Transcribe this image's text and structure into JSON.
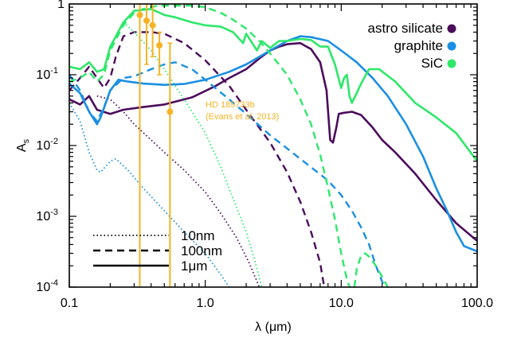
{
  "chart_data": {
    "type": "line",
    "xscale": "log",
    "yscale": "log",
    "xlim": [
      0.1,
      100.0
    ],
    "ylim": [
      0.0001,
      1
    ],
    "xlabel": "λ (μm)",
    "ylabel": "A_s",
    "x_ticks": [
      {
        "value": 0.1,
        "label": "0.1"
      },
      {
        "value": 1.0,
        "label": "1.0"
      },
      {
        "value": 10.0,
        "label": "10.0"
      },
      {
        "value": 100.0,
        "label": "100.0"
      }
    ],
    "y_ticks": [
      {
        "value": 1,
        "base": "1",
        "exp": ""
      },
      {
        "value": 0.1,
        "base": "10",
        "exp": "-1"
      },
      {
        "value": 0.01,
        "base": "10",
        "exp": "-2"
      },
      {
        "value": 0.001,
        "base": "10",
        "exp": "-3"
      },
      {
        "value": 0.0001,
        "base": "10",
        "exp": "-4"
      }
    ],
    "colors": {
      "astro_silicate": "#4b0c5c",
      "graphite": "#1a8fe3",
      "SiC": "#2ee86a",
      "observations": "#f5b324",
      "axes": "#000000"
    },
    "materials": [
      {
        "key": "astro_silicate",
        "name": "astro silicate"
      },
      {
        "key": "graphite",
        "name": "graphite"
      },
      {
        "key": "SiC",
        "name": "SiC"
      }
    ],
    "sizes": [
      {
        "label": "10nm",
        "dash": "dotted"
      },
      {
        "label": "100nm",
        "dash": "dashed"
      },
      {
        "label": "1μm",
        "dash": "solid"
      }
    ],
    "annotation": {
      "line1": "HD 189733b",
      "line2": "(Evans et al. 2013)"
    },
    "observations": [
      {
        "x": 0.33,
        "y": 0.7,
        "ylo": 0.0001,
        "yhi": 1.0
      },
      {
        "x": 0.37,
        "y": 0.58,
        "ylo": 0.14,
        "yhi": 1.0
      },
      {
        "x": 0.41,
        "y": 0.5,
        "ylo": 0.18,
        "yhi": 1.0
      },
      {
        "x": 0.46,
        "y": 0.26,
        "ylo": 0.1,
        "yhi": 0.4
      },
      {
        "x": 0.55,
        "y": 0.03,
        "ylo": 0.0001,
        "yhi": 0.28
      }
    ],
    "series": [
      {
        "material": "astro_silicate",
        "size": "1μm",
        "points": [
          [
            0.1,
            0.045
          ],
          [
            0.12,
            0.038
          ],
          [
            0.14,
            0.05
          ],
          [
            0.16,
            0.032
          ],
          [
            0.2,
            0.028
          ],
          [
            0.25,
            0.032
          ],
          [
            0.35,
            0.035
          ],
          [
            0.5,
            0.038
          ],
          [
            0.8,
            0.048
          ],
          [
            1.2,
            0.07
          ],
          [
            1.5,
            0.09
          ],
          [
            2,
            0.12
          ],
          [
            2.5,
            0.17
          ],
          [
            3,
            0.22
          ],
          [
            3.5,
            0.25
          ],
          [
            4,
            0.27
          ],
          [
            5,
            0.28
          ],
          [
            6,
            0.23
          ],
          [
            7,
            0.15
          ],
          [
            7.8,
            0.06
          ],
          [
            8.3,
            0.012
          ],
          [
            8.7,
            0.011
          ],
          [
            9.2,
            0.018
          ],
          [
            9.6,
            0.028
          ],
          [
            10.5,
            0.029
          ],
          [
            12,
            0.03
          ],
          [
            14,
            0.027
          ],
          [
            17,
            0.018
          ],
          [
            20,
            0.012
          ],
          [
            25,
            0.008
          ],
          [
            35,
            0.004
          ],
          [
            50,
            0.0017
          ],
          [
            70,
            0.0008
          ],
          [
            100,
            0.00045
          ]
        ]
      },
      {
        "material": "astro_silicate",
        "size": "100nm",
        "points": [
          [
            0.1,
            0.06
          ],
          [
            0.12,
            0.09
          ],
          [
            0.14,
            0.13
          ],
          [
            0.16,
            0.09
          ],
          [
            0.18,
            0.065
          ],
          [
            0.2,
            0.09
          ],
          [
            0.22,
            0.18
          ],
          [
            0.25,
            0.35
          ],
          [
            0.3,
            0.4
          ],
          [
            0.4,
            0.4
          ],
          [
            0.5,
            0.38
          ],
          [
            0.7,
            0.28
          ],
          [
            1,
            0.16
          ],
          [
            1.5,
            0.07
          ],
          [
            2,
            0.032
          ],
          [
            3,
            0.011
          ],
          [
            4,
            0.0042
          ],
          [
            5,
            0.0016
          ],
          [
            6,
            0.0006
          ],
          [
            7,
            0.00022
          ],
          [
            7.5,
            0.0001
          ]
        ]
      },
      {
        "material": "astro_silicate",
        "size": "10nm",
        "points": [
          [
            0.16,
            0.05
          ],
          [
            0.2,
            0.045
          ],
          [
            0.25,
            0.03
          ],
          [
            0.3,
            0.02
          ],
          [
            0.4,
            0.012
          ],
          [
            0.5,
            0.008
          ],
          [
            0.7,
            0.0045
          ],
          [
            1,
            0.0022
          ],
          [
            1.3,
            0.0011
          ],
          [
            1.7,
            0.0005
          ],
          [
            2.1,
            0.00022
          ],
          [
            2.5,
            0.0001
          ]
        ]
      },
      {
        "material": "graphite",
        "size": "1μm",
        "points": [
          [
            0.1,
            0.075
          ],
          [
            0.12,
            0.055
          ],
          [
            0.14,
            0.03
          ],
          [
            0.16,
            0.02
          ],
          [
            0.17,
            0.025
          ],
          [
            0.2,
            0.06
          ],
          [
            0.23,
            0.085
          ],
          [
            0.27,
            0.08
          ],
          [
            0.35,
            0.075
          ],
          [
            0.5,
            0.072
          ],
          [
            0.7,
            0.074
          ],
          [
            1,
            0.085
          ],
          [
            1.5,
            0.11
          ],
          [
            2,
            0.14
          ],
          [
            3,
            0.22
          ],
          [
            4,
            0.3
          ],
          [
            5,
            0.35
          ],
          [
            6,
            0.34
          ],
          [
            8,
            0.3
          ],
          [
            10,
            0.22
          ],
          [
            13,
            0.15
          ],
          [
            17,
            0.09
          ],
          [
            22,
            0.05
          ],
          [
            30,
            0.02
          ],
          [
            40,
            0.007
          ],
          [
            50,
            0.0025
          ],
          [
            60,
            0.0012
          ],
          [
            70,
            0.0006
          ],
          [
            80,
            0.00038
          ],
          [
            100,
            0.00032
          ]
        ]
      },
      {
        "material": "graphite",
        "size": "100nm",
        "points": [
          [
            0.1,
            0.1
          ],
          [
            0.12,
            0.06
          ],
          [
            0.14,
            0.03
          ],
          [
            0.16,
            0.022
          ],
          [
            0.18,
            0.035
          ],
          [
            0.2,
            0.06
          ],
          [
            0.25,
            0.09
          ],
          [
            0.3,
            0.095
          ],
          [
            0.4,
            0.12
          ],
          [
            0.5,
            0.14
          ],
          [
            0.6,
            0.15
          ],
          [
            0.8,
            0.12
          ],
          [
            1,
            0.085
          ],
          [
            1.5,
            0.045
          ],
          [
            2,
            0.028
          ],
          [
            3,
            0.014
          ],
          [
            5,
            0.0065
          ],
          [
            8,
            0.0032
          ],
          [
            10,
            0.002
          ],
          [
            12,
            0.0012
          ],
          [
            14,
            0.0007
          ],
          [
            16,
            0.0004
          ],
          [
            18,
            0.0002
          ],
          [
            20,
            0.00012
          ],
          [
            21,
            0.0001
          ]
        ]
      },
      {
        "material": "graphite",
        "size": "10nm",
        "points": [
          [
            0.1,
            0.04
          ],
          [
            0.12,
            0.022
          ],
          [
            0.14,
            0.008
          ],
          [
            0.16,
            0.0045
          ],
          [
            0.17,
            0.0042
          ],
          [
            0.2,
            0.006
          ],
          [
            0.22,
            0.0065
          ],
          [
            0.27,
            0.0045
          ],
          [
            0.35,
            0.0025
          ],
          [
            0.5,
            0.0012
          ],
          [
            0.7,
            0.0006
          ],
          [
            1,
            0.0003
          ],
          [
            1.3,
            0.00015
          ],
          [
            1.5,
            0.0001
          ]
        ]
      },
      {
        "material": "SiC",
        "size": "1μm",
        "points": [
          [
            0.1,
            0.13
          ],
          [
            0.12,
            0.12
          ],
          [
            0.14,
            0.15
          ],
          [
            0.16,
            0.11
          ],
          [
            0.18,
            0.12
          ],
          [
            0.2,
            0.25
          ],
          [
            0.25,
            0.55
          ],
          [
            0.3,
            0.8
          ],
          [
            0.4,
            0.85
          ],
          [
            0.5,
            0.7
          ],
          [
            0.6,
            0.65
          ],
          [
            0.8,
            0.55
          ],
          [
            1,
            0.5
          ],
          [
            1.3,
            0.48
          ],
          [
            1.6,
            0.4
          ],
          [
            1.9,
            0.28
          ],
          [
            2,
            0.38
          ],
          [
            2.4,
            0.22
          ],
          [
            2.6,
            0.3
          ],
          [
            3,
            0.24
          ],
          [
            3.5,
            0.3
          ],
          [
            4,
            0.3
          ],
          [
            5,
            0.32
          ],
          [
            6,
            0.31
          ],
          [
            7,
            0.25
          ],
          [
            8,
            0.25
          ],
          [
            9,
            0.14
          ],
          [
            10,
            0.065
          ],
          [
            10.5,
            0.09
          ],
          [
            11,
            0.1
          ],
          [
            11.5,
            0.05
          ],
          [
            12,
            0.04
          ],
          [
            13,
            0.055
          ],
          [
            14,
            0.075
          ],
          [
            16,
            0.12
          ],
          [
            19,
            0.12
          ],
          [
            25,
            0.08
          ],
          [
            35,
            0.04
          ],
          [
            50,
            0.025
          ],
          [
            70,
            0.015
          ],
          [
            100,
            0.006
          ]
        ]
      },
      {
        "material": "SiC",
        "size": "100nm",
        "points": [
          [
            0.1,
            0.08
          ],
          [
            0.12,
            0.09
          ],
          [
            0.14,
            0.11
          ],
          [
            0.16,
            0.08
          ],
          [
            0.18,
            0.1
          ],
          [
            0.2,
            0.22
          ],
          [
            0.25,
            0.5
          ],
          [
            0.3,
            0.75
          ],
          [
            0.35,
            0.85
          ],
          [
            0.45,
            0.95
          ],
          [
            0.6,
            0.95
          ],
          [
            0.8,
            0.95
          ],
          [
            1,
            0.9
          ],
          [
            1.3,
            0.75
          ],
          [
            1.6,
            0.6
          ],
          [
            2,
            0.45
          ],
          [
            2.5,
            0.3
          ],
          [
            3,
            0.2
          ],
          [
            4,
            0.1
          ],
          [
            5,
            0.045
          ],
          [
            6,
            0.02
          ],
          [
            7,
            0.0075
          ],
          [
            8,
            0.0025
          ],
          [
            9,
            0.0009
          ],
          [
            10,
            0.0003
          ],
          [
            11,
            0.00013
          ],
          [
            11.5,
            0.0001
          ]
        ]
      },
      {
        "material": "SiC",
        "size": "100nm",
        "points": [
          [
            12.5,
            0.0001
          ],
          [
            13,
            0.00018
          ],
          [
            14,
            0.00028
          ],
          [
            15,
            0.0003
          ],
          [
            16,
            0.00027
          ],
          [
            18,
            0.0002
          ],
          [
            20,
            0.00014
          ],
          [
            22,
            0.0001
          ]
        ]
      },
      {
        "material": "SiC",
        "size": "10nm",
        "points": [
          [
            0.25,
            0.55
          ],
          [
            0.3,
            0.4
          ],
          [
            0.4,
            0.22
          ],
          [
            0.5,
            0.12
          ],
          [
            0.7,
            0.045
          ],
          [
            1,
            0.015
          ],
          [
            1.3,
            0.005
          ],
          [
            1.6,
            0.0018
          ],
          [
            2,
            0.0006
          ],
          [
            2.3,
            0.00025
          ],
          [
            2.6,
            0.0001
          ]
        ]
      }
    ]
  }
}
